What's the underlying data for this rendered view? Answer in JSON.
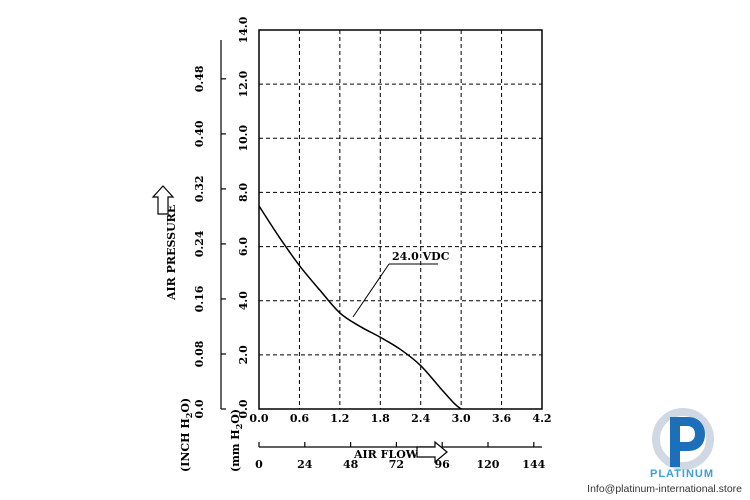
{
  "chart_data": {
    "type": "line",
    "series": [
      {
        "name": "24.0 VDC",
        "x": [
          0.0,
          0.3,
          0.6,
          0.9,
          1.2,
          1.5,
          1.8,
          2.1,
          2.4,
          2.7,
          2.9,
          3.0
        ],
        "y": [
          7.5,
          6.35,
          5.3,
          4.4,
          3.55,
          3.05,
          2.65,
          2.2,
          1.6,
          0.75,
          0.2,
          0.0
        ]
      }
    ],
    "annotation": "24.0 VDC",
    "x_primary": {
      "label": "AIR FLOW",
      "ticks": [
        "0.0",
        "0.6",
        "1.2",
        "1.8",
        "2.4",
        "3.0",
        "3.6",
        "4.2"
      ],
      "range": [
        0,
        4.2
      ]
    },
    "x_secondary": {
      "ticks": [
        "0",
        "24",
        "48",
        "72",
        "96",
        "120",
        "144"
      ],
      "range": [
        0,
        148.3
      ]
    },
    "y_primary": {
      "unit_label": "(mm H2O)",
      "ticks": [
        "0.0",
        "2.0",
        "4.0",
        "6.0",
        "8.0",
        "10.0",
        "12.0",
        "14.0"
      ],
      "range": [
        0,
        14
      ]
    },
    "y_secondary": {
      "label": "AIR PRESSURE",
      "unit_label": "(INCH H2O)",
      "ticks": [
        "0.0",
        "0.08",
        "0.16",
        "0.24",
        "0.32",
        "0.40",
        "0.48"
      ],
      "range": [
        0,
        0.551
      ]
    },
    "grid": true
  },
  "watermark": {
    "brand": "PLATINUM",
    "url": "Info@platinum-international.store"
  }
}
